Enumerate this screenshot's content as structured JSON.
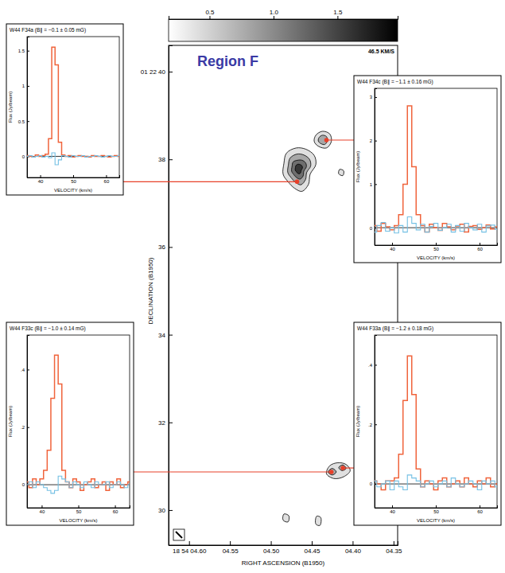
{
  "chart_data": [
    {
      "type": "contour",
      "title": "Region F",
      "xlabel": "RIGHT ASCENSION (B1950)",
      "ylabel": "DECLINATION (B1950)",
      "xlim": [
        4.625,
        4.345
      ],
      "xticks": [
        {
          "value": 4.6,
          "label": "18 54 04.60"
        },
        {
          "value": 4.55,
          "label": "04.55"
        },
        {
          "value": 4.5,
          "label": "04.50"
        },
        {
          "value": 4.45,
          "label": "04.45"
        },
        {
          "value": 4.4,
          "label": "04.40"
        },
        {
          "value": 4.35,
          "label": "04.35"
        }
      ],
      "ylim": [
        29.2,
        40.6
      ],
      "yticks": [
        30,
        32,
        34,
        36,
        38,
        {
          "value": 40,
          "label": "01 22 40"
        }
      ],
      "colorbar": {
        "label": "46.5 KM/S",
        "lim": [
          0.18,
          1.97
        ],
        "ticks": [
          0.5,
          {
            "value": 1,
            "label": "1.0"
          },
          1.5
        ]
      },
      "contours": [
        {
          "level": 0.4,
          "x": [
            4.481,
            4.469,
            4.457,
            4.447,
            4.445,
            4.452,
            4.454,
            4.462,
            4.471,
            4.479,
            4.485,
            4.484
          ],
          "y": [
            38.14,
            38.26,
            38.23,
            38.09,
            37.88,
            37.66,
            37.43,
            37.27,
            37.34,
            37.49,
            37.66,
            37.91
          ]
        },
        {
          "level": 0.8,
          "x": [
            4.4765,
            4.4681,
            4.4597,
            4.4527,
            4.4513,
            4.4562,
            4.4576,
            4.4632,
            4.4695,
            4.4751,
            4.4793,
            4.4786
          ],
          "y": [
            38.03,
            38.12,
            38.1,
            38.0,
            37.85,
            37.7,
            37.54,
            37.42,
            37.47,
            37.58,
            37.7,
            37.87
          ]
        },
        {
          "level": 1.2,
          "x": [
            4.4728,
            4.4674,
            4.462,
            4.4575,
            4.4566,
            4.4597,
            4.4606,
            4.4642,
            4.4683,
            4.4719,
            4.4746,
            4.4741
          ],
          "y": [
            37.94,
            37.98,
            37.98,
            37.92,
            37.83,
            37.73,
            37.62,
            37.55,
            37.58,
            37.65,
            37.73,
            37.84
          ]
        },
        {
          "level": 1.6,
          "x": [
            4.4693,
            4.4667,
            4.464,
            4.4618,
            4.4614,
            4.4629,
            4.4634,
            4.4651,
            4.4671,
            4.4689,
            4.4702,
            4.47
          ],
          "y": [
            37.86,
            37.89,
            37.88,
            37.85,
            37.8,
            37.75,
            37.7,
            37.67,
            37.68,
            37.72,
            37.75,
            37.81
          ]
        },
        {
          "level": 0.4,
          "x": [
            4.445,
            4.437,
            4.428,
            4.426,
            4.432,
            4.442,
            4.447
          ],
          "y": [
            38.55,
            38.64,
            38.58,
            38.41,
            38.26,
            38.3,
            38.41
          ]
        },
        {
          "level": 0.8,
          "x": [
            4.441,
            4.437,
            4.432,
            4.431,
            4.434,
            4.439,
            4.442
          ],
          "y": [
            38.5,
            38.55,
            38.52,
            38.42,
            38.34,
            38.36,
            38.42
          ]
        },
        {
          "level": 0.4,
          "x": [
            4.416,
            4.411,
            4.412,
            4.417
          ],
          "y": [
            37.77,
            37.74,
            37.63,
            37.67
          ]
        },
        {
          "level": 0.4,
          "x": [
            4.432,
            4.428,
            4.418,
            4.408,
            4.403,
            4.411,
            4.423
          ],
          "y": [
            30.83,
            31.01,
            31.08,
            31.04,
            30.9,
            30.76,
            30.72
          ]
        },
        {
          "level": 0.8,
          "x": [
            4.43,
            4.425,
            4.42,
            4.425
          ],
          "y": [
            30.87,
            30.95,
            30.87,
            30.8
          ]
        },
        {
          "level": 0.8,
          "x": [
            4.417,
            4.412,
            4.408,
            4.413
          ],
          "y": [
            30.97,
            31.03,
            30.95,
            30.9
          ]
        },
        {
          "level": 0.4,
          "x": [
            4.484,
            4.478,
            4.479,
            4.485
          ],
          "y": [
            29.91,
            29.87,
            29.73,
            29.77
          ]
        },
        {
          "level": 0.4,
          "x": [
            4.444,
            4.439,
            4.44,
            4.445
          ],
          "y": [
            29.86,
            29.83,
            29.65,
            29.68
          ]
        }
      ]
    },
    {
      "type": "line",
      "title": "W44 F34a (B∥ = −0.1 ± 0.05 mG)",
      "xlabel": "VELOCITY (km/s)",
      "ylabel": "Flux (Jy/beam)",
      "x": [
        36,
        37,
        38,
        39,
        40,
        41,
        42,
        43,
        44,
        45,
        46,
        47,
        48,
        49,
        50,
        51,
        52,
        53,
        54,
        55,
        56,
        57,
        58,
        59,
        60,
        61,
        62,
        63,
        64
      ],
      "xlim": [
        36,
        64
      ],
      "xticks": [
        40,
        50,
        60
      ],
      "ylim": [
        -0.3,
        1.7
      ],
      "yticks": [
        0,
        0.5,
        1,
        1.5
      ],
      "series": [
        {
          "color": "#f0643c",
          "values": [
            0.01,
            0,
            -0.01,
            0.02,
            0,
            0.01,
            0.03,
            0.25,
            1.55,
            1.3,
            0.2,
            0.02,
            0,
            0.01,
            -0.01,
            0,
            0.01,
            0,
            0,
            -0.01,
            0.01,
            0,
            0,
            0.01,
            0,
            -0.01,
            0,
            0.01,
            0
          ]
        },
        {
          "color": "#74c0e4",
          "values": [
            0,
            0.01,
            -0.01,
            0,
            0.01,
            -0.01,
            0,
            -0.02,
            0.05,
            -0.12,
            -0.05,
            0.01,
            0,
            -0.01,
            0.01,
            0,
            0,
            0.01,
            -0.01,
            0,
            0,
            0.01,
            0,
            -0.01,
            0,
            0.01,
            0,
            0,
            0.01
          ]
        }
      ],
      "position": {
        "ra": 4.468,
        "dec": 37.49
      }
    },
    {
      "type": "line",
      "title": "W44 F34c (B∥ = −1.1 ± 0.16 mG)",
      "xlabel": "VELOCITY (km/s)",
      "ylabel": "Flux (Jy/beam)",
      "x": [
        36,
        37,
        38,
        39,
        40,
        41,
        42,
        43,
        44,
        45,
        46,
        47,
        48,
        49,
        50,
        51,
        52,
        53,
        54,
        55,
        56,
        57,
        58,
        59,
        60,
        61,
        62,
        63,
        64
      ],
      "xlim": [
        36,
        64
      ],
      "xticks": [
        40,
        50,
        60
      ],
      "ylim": [
        -0.4,
        3.2
      ],
      "yticks": [
        0,
        1,
        2,
        3
      ],
      "series": [
        {
          "color": "#f0643c",
          "values": [
            0.05,
            -0.08,
            0.1,
            0.02,
            -0.05,
            0.05,
            0.3,
            1.0,
            2.8,
            1.4,
            0.3,
            0.05,
            -0.1,
            0.08,
            0,
            -0.06,
            0.1,
            0.02,
            -0.05,
            0.04,
            0.08,
            -0.1,
            0.03,
            0.05,
            -0.04,
            0,
            0.06,
            -0.03,
            0.02
          ]
        },
        {
          "color": "#74c0e4",
          "values": [
            -0.1,
            0.05,
            0.12,
            -0.08,
            0,
            -0.12,
            0.05,
            -0.1,
            0.25,
            0.1,
            -0.05,
            0.08,
            -0.1,
            0.03,
            0.1,
            -0.06,
            0,
            0.08,
            -0.1,
            0.05,
            -0.08,
            0.1,
            0,
            -0.05,
            0.08,
            -0.1,
            0.04,
            0.06,
            -0.04
          ]
        }
      ],
      "position": {
        "ra": 4.432,
        "dec": 38.44
      }
    },
    {
      "type": "line",
      "title": "W44 F33c (B∥ = −1.0 ± 0.14 mG)",
      "xlabel": "VELOCITY (km/s)",
      "ylabel": "Flux (Jy/beam)",
      "x": [
        36,
        37,
        38,
        39,
        40,
        41,
        42,
        43,
        44,
        45,
        46,
        47,
        48,
        49,
        50,
        51,
        52,
        53,
        54,
        55,
        56,
        57,
        58,
        59,
        60,
        61,
        62,
        63,
        64
      ],
      "xlim": [
        36,
        64
      ],
      "xticks": [
        40,
        50,
        60
      ],
      "ylim": [
        -0.08,
        0.52
      ],
      "yticks": [
        0,
        {
          "value": 0.2,
          "label": ".2"
        },
        {
          "value": 0.4,
          "label": ".4"
        }
      ],
      "series": [
        {
          "color": "#f0643c",
          "values": [
            0.01,
            -0.01,
            0.02,
            0,
            0.02,
            0.05,
            0.12,
            0.3,
            0.45,
            0.35,
            0.05,
            0.01,
            -0.01,
            0.02,
            0.01,
            -0.02,
            0,
            0.01,
            0.02,
            -0.01,
            0,
            0.01,
            -0.02,
            0.01,
            0,
            0.02,
            -0.01,
            0,
            0.01
          ]
        },
        {
          "color": "#74c0e4",
          "values": [
            0,
            0.01,
            -0.01,
            0.01,
            0,
            -0.01,
            -0.02,
            -0.03,
            -0.02,
            0.03,
            0.02,
            0.01,
            -0.01,
            0.01,
            0,
            -0.01,
            0.01,
            0,
            -0.01,
            0.01,
            0,
            0,
            0.01,
            -0.01,
            0,
            0.01,
            0,
            -0.01,
            0
          ]
        }
      ],
      "position": {
        "ra": 4.426,
        "dec": 30.87
      }
    },
    {
      "type": "line",
      "title": "W44 F33a (B∥ = −1.2 ± 0.18 mG)",
      "xlabel": "VELOCITY (km/s)",
      "ylabel": "Flux (Jy/beam)",
      "x": [
        36,
        37,
        38,
        39,
        40,
        41,
        42,
        43,
        44,
        45,
        46,
        47,
        48,
        49,
        50,
        51,
        52,
        53,
        54,
        55,
        56,
        57,
        58,
        59,
        60,
        61,
        62,
        63,
        64
      ],
      "xlim": [
        36,
        64
      ],
      "xticks": [
        40,
        50,
        60
      ],
      "ylim": [
        -0.08,
        0.5
      ],
      "yticks": [
        0,
        {
          "value": 0.2,
          "label": ".2"
        },
        {
          "value": 0.4,
          "label": ".4"
        }
      ],
      "series": [
        {
          "color": "#f0643c",
          "values": [
            0.01,
            0,
            -0.02,
            0.01,
            0.01,
            0.02,
            0.1,
            0.28,
            0.43,
            0.3,
            0.05,
            -0.01,
            0.01,
            0,
            -0.02,
            0.01,
            0.02,
            -0.01,
            0,
            0.01,
            -0.01,
            0.02,
            0,
            -0.01,
            0.01,
            0,
            0.02,
            -0.01,
            0
          ]
        },
        {
          "color": "#74c0e4",
          "values": [
            0.01,
            -0.01,
            0,
            0.01,
            -0.02,
            0.01,
            -0.01,
            -0.02,
            0.03,
            0.02,
            0.01,
            -0.01,
            0,
            0.01,
            -0.01,
            0,
            0.01,
            -0.01,
            0.02,
            0,
            -0.01,
            0,
            0.01,
            0,
            -0.02,
            0.01,
            0,
            0.01,
            -0.01
          ]
        }
      ],
      "position": {
        "ra": 4.412,
        "dec": 30.96
      }
    }
  ]
}
